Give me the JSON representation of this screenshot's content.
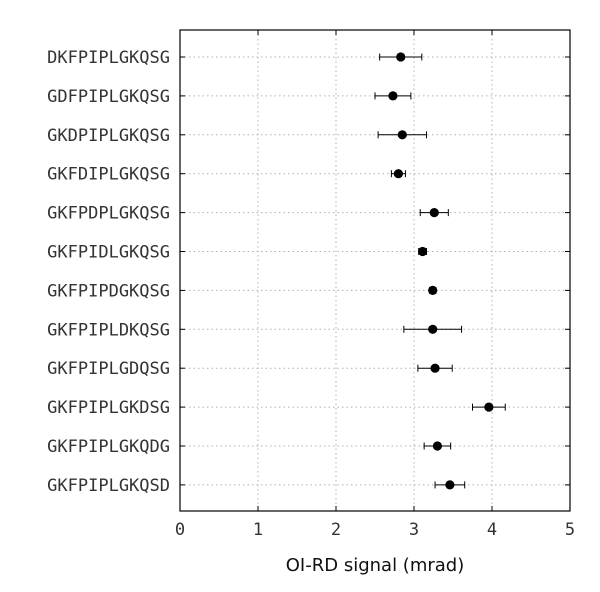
{
  "chart_data": {
    "type": "scatter",
    "orientation": "horizontal",
    "xlabel": "OI-RD signal (mrad)",
    "xlim": [
      0,
      5
    ],
    "xticks": [
      0,
      1,
      2,
      3,
      4,
      5
    ],
    "grid": true,
    "marker_color": "#000000",
    "categories": [
      "DKFPIPLGKQSG",
      "GDFPIPLGKQSG",
      "GKDPIPLGKQSG",
      "GKFDIPLGKQSG",
      "GKFPDPLGKQSG",
      "GKFPIDLGKQSG",
      "GKFPIPDGKQSG",
      "GKFPIPLDKQSG",
      "GKFPIPLGDQSG",
      "GKFPIPLGKDSG",
      "GKFPIPLGKQDG",
      "GKFPIPLGKQSD"
    ],
    "values": [
      2.83,
      2.73,
      2.85,
      2.8,
      3.26,
      3.11,
      3.24,
      3.24,
      3.27,
      3.96,
      3.3,
      3.46
    ],
    "errors": [
      0.27,
      0.23,
      0.31,
      0.09,
      0.18,
      0.05,
      0.04,
      0.37,
      0.22,
      0.21,
      0.17,
      0.19
    ]
  }
}
